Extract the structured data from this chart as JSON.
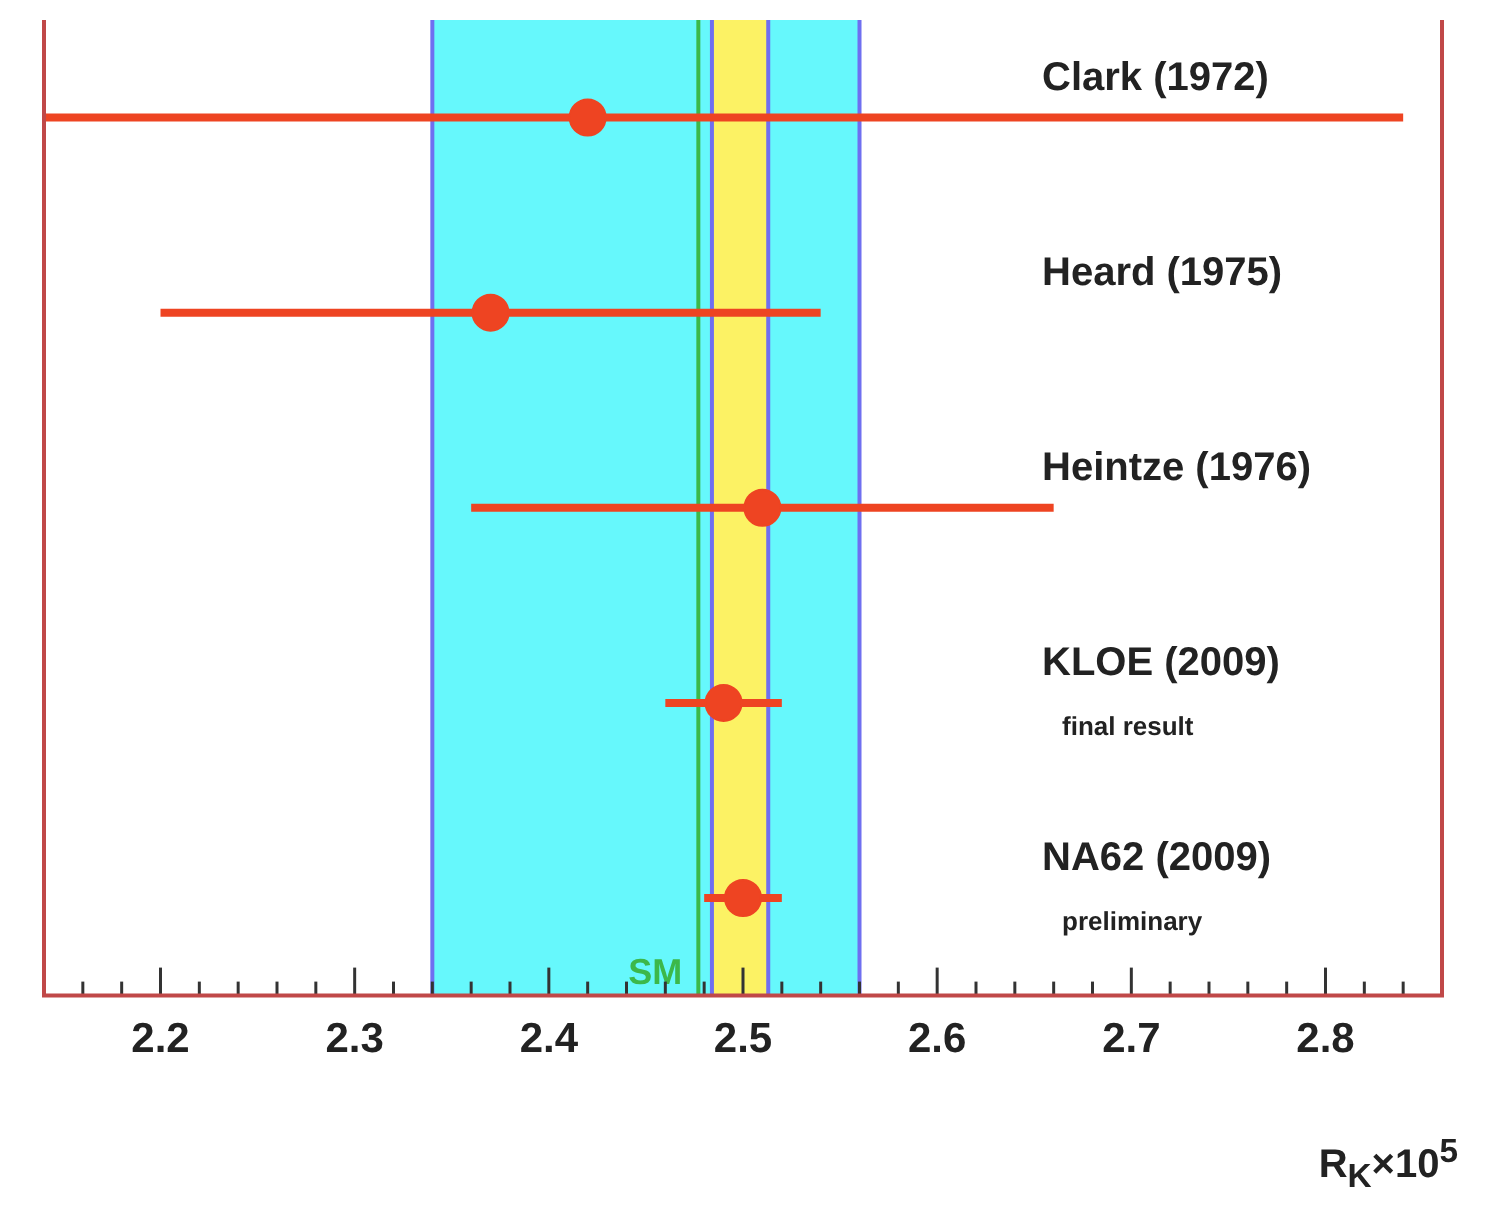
{
  "chart_data": {
    "type": "scatter",
    "orientation": "horizontal",
    "categories": [
      "Clark (1972)",
      "Heard (1975)",
      "Heintze (1976)",
      "KLOE (2009)",
      "NA62 (2009)"
    ],
    "series": [
      {
        "color": "#ee4422",
        "values": [
          2.42,
          2.37,
          2.51,
          2.49,
          2.5
        ],
        "errors": [
          [
            2.14,
            2.84
          ],
          0.17,
          0.15,
          0.03,
          0.02
        ]
      }
    ],
    "xlabel": "R$_{K}$×10$^{5}$",
    "xlim": [
      2.14,
      2.86
    ],
    "xticks": [
      {
        "value": 2.14,
        "label": null
      },
      {
        "value": 2.16,
        "label": null
      },
      {
        "value": 2.18,
        "label": null
      },
      2.2,
      {
        "value": 2.22,
        "label": null
      },
      {
        "value": 2.24,
        "label": null
      },
      {
        "value": 2.26,
        "label": null
      },
      {
        "value": 2.28,
        "label": null
      },
      2.3,
      {
        "value": 2.32,
        "label": null
      },
      {
        "value": 2.34,
        "label": null
      },
      {
        "value": 2.36,
        "label": null
      },
      {
        "value": 2.38,
        "label": null
      },
      2.4,
      {
        "value": 2.42,
        "label": null
      },
      {
        "value": 2.44,
        "label": null
      },
      {
        "value": 2.46,
        "label": null
      },
      {
        "value": 2.48,
        "label": null
      },
      2.5,
      {
        "value": 2.52,
        "label": null
      },
      {
        "value": 2.54,
        "label": null
      },
      {
        "value": 2.56,
        "label": null
      },
      {
        "value": 2.58,
        "label": null
      },
      2.6,
      {
        "value": 2.62,
        "label": null
      },
      {
        "value": 2.64,
        "label": null
      },
      {
        "value": 2.66,
        "label": null
      },
      {
        "value": 2.68,
        "label": null
      },
      2.7,
      {
        "value": 2.72,
        "label": null
      },
      {
        "value": 2.74,
        "label": null
      },
      {
        "value": 2.76,
        "label": null
      },
      {
        "value": 2.78,
        "label": null
      },
      2.8,
      {
        "value": 2.82,
        "label": null
      },
      {
        "value": 2.84,
        "label": null
      }
    ],
    "bands": [
      {
        "axis": "x",
        "from": 2.34,
        "to": 2.56,
        "color": "#66f8fc"
      },
      {
        "axis": "x",
        "from": 2.484,
        "to": 2.513,
        "color": "#fcf264"
      }
    ],
    "ref_lines": [
      {
        "axis": "x",
        "value": 2.477,
        "label": "SM",
        "color": "#3cb84a"
      }
    ],
    "annotations": [
      "final result",
      "preliminary"
    ],
    "marker": "circle",
    "legend": false
  }
}
